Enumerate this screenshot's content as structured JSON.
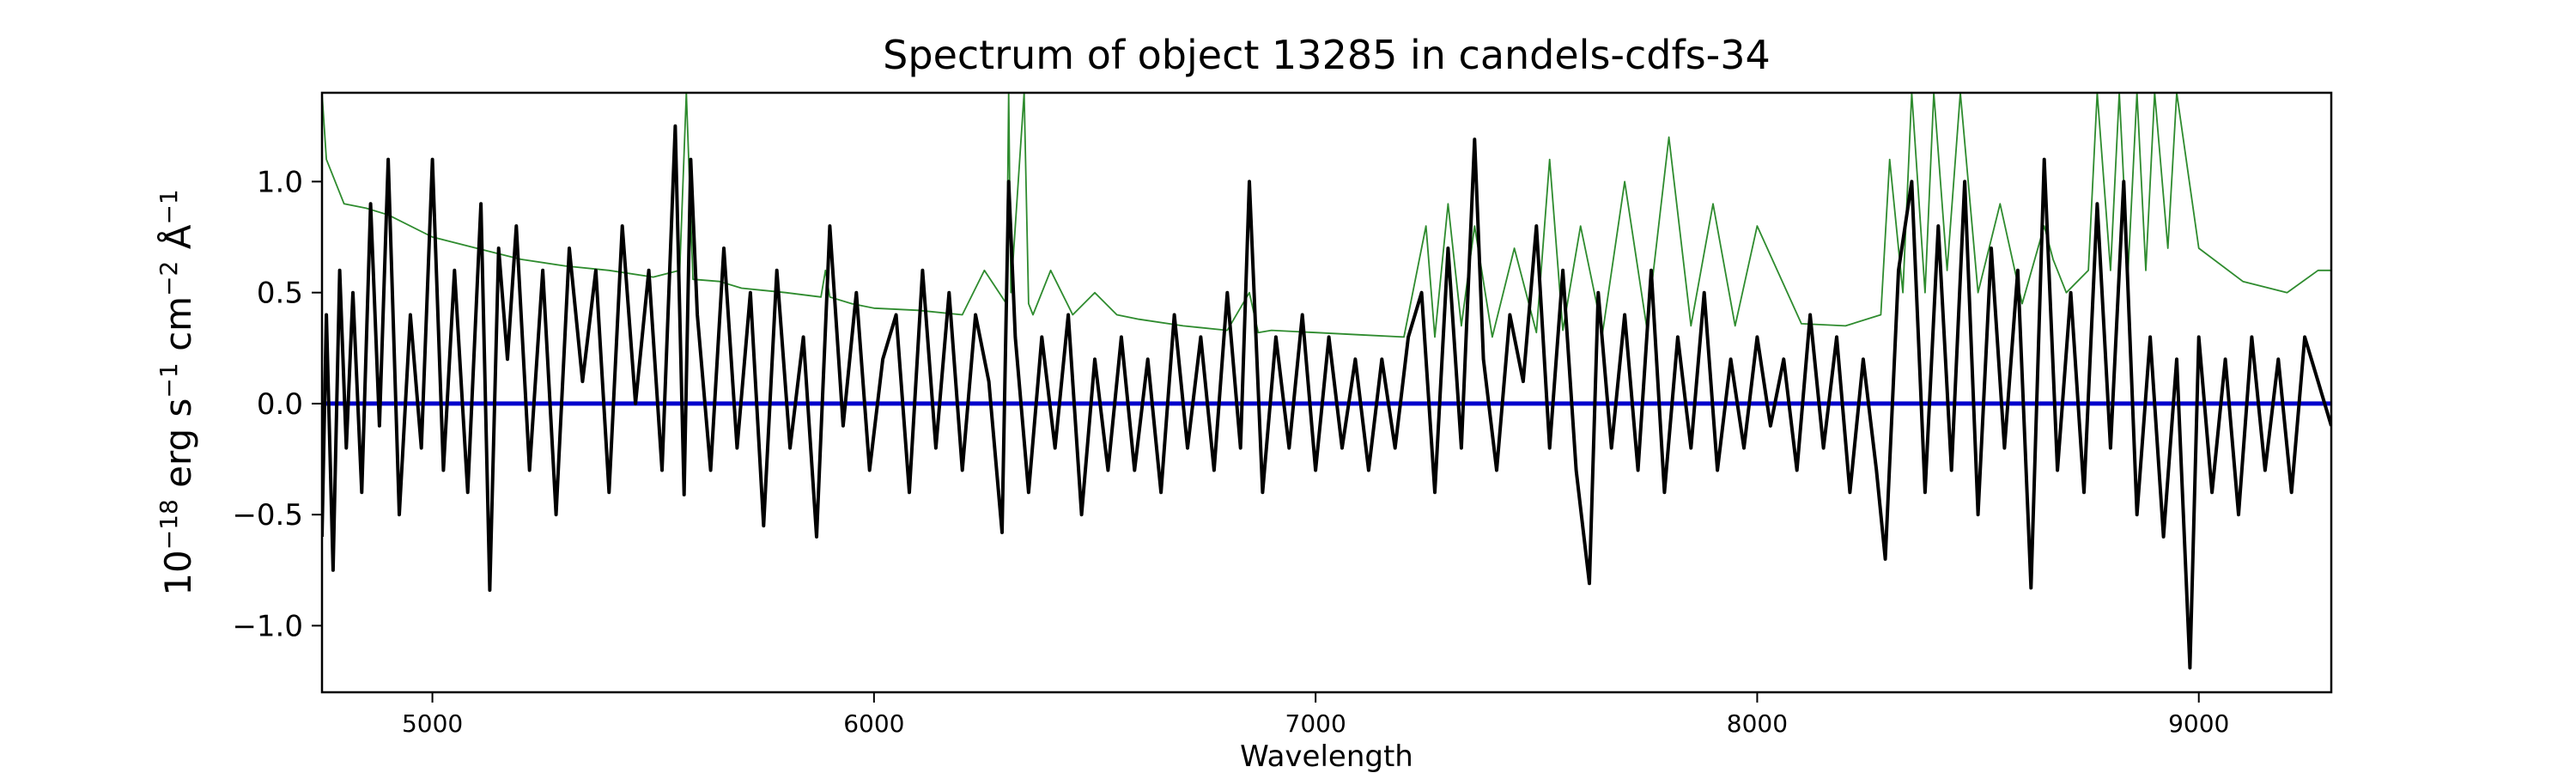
{
  "chart_data": {
    "type": "line",
    "title": "Spectrum of object 13285 in candels-cdfs-34",
    "xlabel": "Wavelength",
    "ylabel_parts": {
      "base": "10",
      "exp": "−18",
      "units": " erg s",
      "s_exp": "−1",
      "cm": " cm",
      "cm_exp": "−2",
      "angstrom": " Å",
      "a_exp": "−1"
    },
    "xlim": [
      4750,
      9300
    ],
    "ylim": [
      -1.3,
      1.4
    ],
    "xticks": [
      5000,
      6000,
      7000,
      8000,
      9000
    ],
    "xtick_labels": [
      "5000",
      "6000",
      "7000",
      "8000",
      "9000"
    ],
    "yticks": [
      -1.0,
      -0.5,
      0.0,
      0.5,
      1.0
    ],
    "ytick_labels": [
      "−1.0",
      "−0.5",
      "0.0",
      "0.5",
      "1.0"
    ],
    "grid": false,
    "colors": {
      "flux": "#000000",
      "error": "#2e8b2e",
      "zero_line": "#0000cc"
    },
    "series": [
      {
        "role": "flux",
        "x": [
          4750,
          4760,
          4775,
          4790,
          4805,
          4820,
          4840,
          4860,
          4880,
          4900,
          4925,
          4950,
          4975,
          5000,
          5025,
          5050,
          5080,
          5110,
          5130,
          5150,
          5170,
          5190,
          5220,
          5250,
          5280,
          5310,
          5340,
          5370,
          5400,
          5430,
          5460,
          5490,
          5520,
          5550,
          5570,
          5585,
          5600,
          5630,
          5660,
          5690,
          5720,
          5750,
          5780,
          5810,
          5840,
          5870,
          5900,
          5930,
          5960,
          5990,
          6020,
          6050,
          6080,
          6110,
          6140,
          6170,
          6200,
          6230,
          6260,
          6290,
          6305,
          6320,
          6350,
          6380,
          6410,
          6440,
          6470,
          6500,
          6530,
          6560,
          6590,
          6620,
          6650,
          6680,
          6710,
          6740,
          6770,
          6800,
          6830,
          6850,
          6880,
          6910,
          6940,
          6970,
          7000,
          7030,
          7060,
          7090,
          7120,
          7150,
          7180,
          7210,
          7240,
          7270,
          7300,
          7330,
          7360,
          7380,
          7410,
          7440,
          7470,
          7500,
          7530,
          7560,
          7590,
          7620,
          7640,
          7670,
          7700,
          7730,
          7760,
          7790,
          7820,
          7850,
          7880,
          7910,
          7940,
          7970,
          8000,
          8030,
          8060,
          8090,
          8120,
          8150,
          8180,
          8210,
          8240,
          8270,
          8290,
          8320,
          8350,
          8380,
          8410,
          8440,
          8470,
          8500,
          8530,
          8560,
          8590,
          8620,
          8650,
          8680,
          8710,
          8740,
          8770,
          8800,
          8830,
          8860,
          8890,
          8920,
          8950,
          8980,
          9000,
          9030,
          9060,
          9090,
          9120,
          9150,
          9180,
          9210,
          9240,
          9270,
          9300
        ],
        "y": [
          -0.6,
          0.4,
          -0.75,
          0.6,
          -0.2,
          0.5,
          -0.4,
          0.9,
          -0.1,
          1.1,
          -0.5,
          0.4,
          -0.2,
          1.1,
          -0.3,
          0.6,
          -0.4,
          0.9,
          -0.84,
          0.7,
          0.2,
          0.8,
          -0.3,
          0.6,
          -0.5,
          0.7,
          0.1,
          0.6,
          -0.4,
          0.8,
          0.0,
          0.6,
          -0.3,
          1.25,
          -0.41,
          1.1,
          0.4,
          -0.3,
          0.7,
          -0.2,
          0.5,
          -0.55,
          0.6,
          -0.2,
          0.3,
          -0.6,
          0.8,
          -0.1,
          0.5,
          -0.3,
          0.2,
          0.4,
          -0.4,
          0.6,
          -0.2,
          0.5,
          -0.3,
          0.4,
          0.1,
          -0.58,
          1.0,
          0.3,
          -0.4,
          0.3,
          -0.2,
          0.4,
          -0.5,
          0.2,
          -0.3,
          0.3,
          -0.3,
          0.2,
          -0.4,
          0.4,
          -0.2,
          0.3,
          -0.3,
          0.5,
          -0.2,
          1.0,
          -0.4,
          0.3,
          -0.2,
          0.4,
          -0.3,
          0.3,
          -0.2,
          0.2,
          -0.3,
          0.2,
          -0.2,
          0.3,
          0.5,
          -0.4,
          0.7,
          -0.2,
          1.19,
          0.2,
          -0.3,
          0.4,
          0.1,
          0.8,
          -0.2,
          0.6,
          -0.3,
          -0.81,
          0.5,
          -0.2,
          0.4,
          -0.3,
          0.6,
          -0.4,
          0.3,
          -0.2,
          0.5,
          -0.3,
          0.2,
          -0.2,
          0.3,
          -0.1,
          0.2,
          -0.3,
          0.4,
          -0.2,
          0.3,
          -0.4,
          0.2,
          -0.3,
          -0.7,
          0.6,
          1.0,
          -0.4,
          0.8,
          -0.3,
          1.0,
          -0.5,
          0.7,
          -0.2,
          0.6,
          -0.83,
          1.1,
          -0.3,
          0.5,
          -0.4,
          0.9,
          -0.2,
          1.0,
          -0.5,
          0.3,
          -0.6,
          0.2,
          -1.19,
          0.3,
          -0.4,
          0.2,
          -0.5,
          0.3,
          -0.3,
          0.2,
          -0.4,
          0.3,
          0.1,
          -0.1
        ]
      },
      {
        "role": "error",
        "x": [
          4750,
          4760,
          4780,
          4800,
          4850,
          4900,
          5000,
          5100,
          5200,
          5300,
          5400,
          5500,
          5560,
          5575,
          5590,
          5650,
          5700,
          5800,
          5880,
          5890,
          5900,
          5950,
          6000,
          6100,
          6200,
          6250,
          6300,
          6305,
          6310,
          6340,
          6350,
          6360,
          6400,
          6450,
          6500,
          6550,
          6600,
          6700,
          6800,
          6850,
          6870,
          6900,
          7000,
          7100,
          7200,
          7250,
          7270,
          7300,
          7330,
          7360,
          7400,
          7450,
          7500,
          7530,
          7560,
          7600,
          7650,
          7700,
          7750,
          7800,
          7850,
          7900,
          7950,
          8000,
          8100,
          8200,
          8280,
          8300,
          8330,
          8350,
          8380,
          8400,
          8430,
          8460,
          8500,
          8550,
          8600,
          8650,
          8670,
          8700,
          8750,
          8770,
          8800,
          8820,
          8840,
          8860,
          8880,
          8900,
          8930,
          8950,
          9000,
          9100,
          9200,
          9270,
          9300
        ],
        "y": [
          1.4,
          1.1,
          1.0,
          0.9,
          0.88,
          0.85,
          0.75,
          0.7,
          0.65,
          0.62,
          0.6,
          0.57,
          0.6,
          1.4,
          0.56,
          0.55,
          0.52,
          0.5,
          0.48,
          0.6,
          0.48,
          0.45,
          0.43,
          0.42,
          0.4,
          0.6,
          0.45,
          1.4,
          0.5,
          1.4,
          0.45,
          0.4,
          0.6,
          0.4,
          0.5,
          0.4,
          0.38,
          0.35,
          0.33,
          0.5,
          0.32,
          0.33,
          0.32,
          0.31,
          0.3,
          0.8,
          0.3,
          0.9,
          0.35,
          0.8,
          0.3,
          0.7,
          0.32,
          1.1,
          0.33,
          0.8,
          0.32,
          1.0,
          0.34,
          1.2,
          0.35,
          0.9,
          0.35,
          0.8,
          0.36,
          0.35,
          0.4,
          1.1,
          0.5,
          1.4,
          0.5,
          1.4,
          0.6,
          1.4,
          0.5,
          0.9,
          0.45,
          0.8,
          0.65,
          0.5,
          0.6,
          1.4,
          0.6,
          1.4,
          0.6,
          1.4,
          0.6,
          1.4,
          0.7,
          1.4,
          0.7,
          0.55,
          0.5,
          0.6,
          0.6
        ]
      }
    ]
  }
}
